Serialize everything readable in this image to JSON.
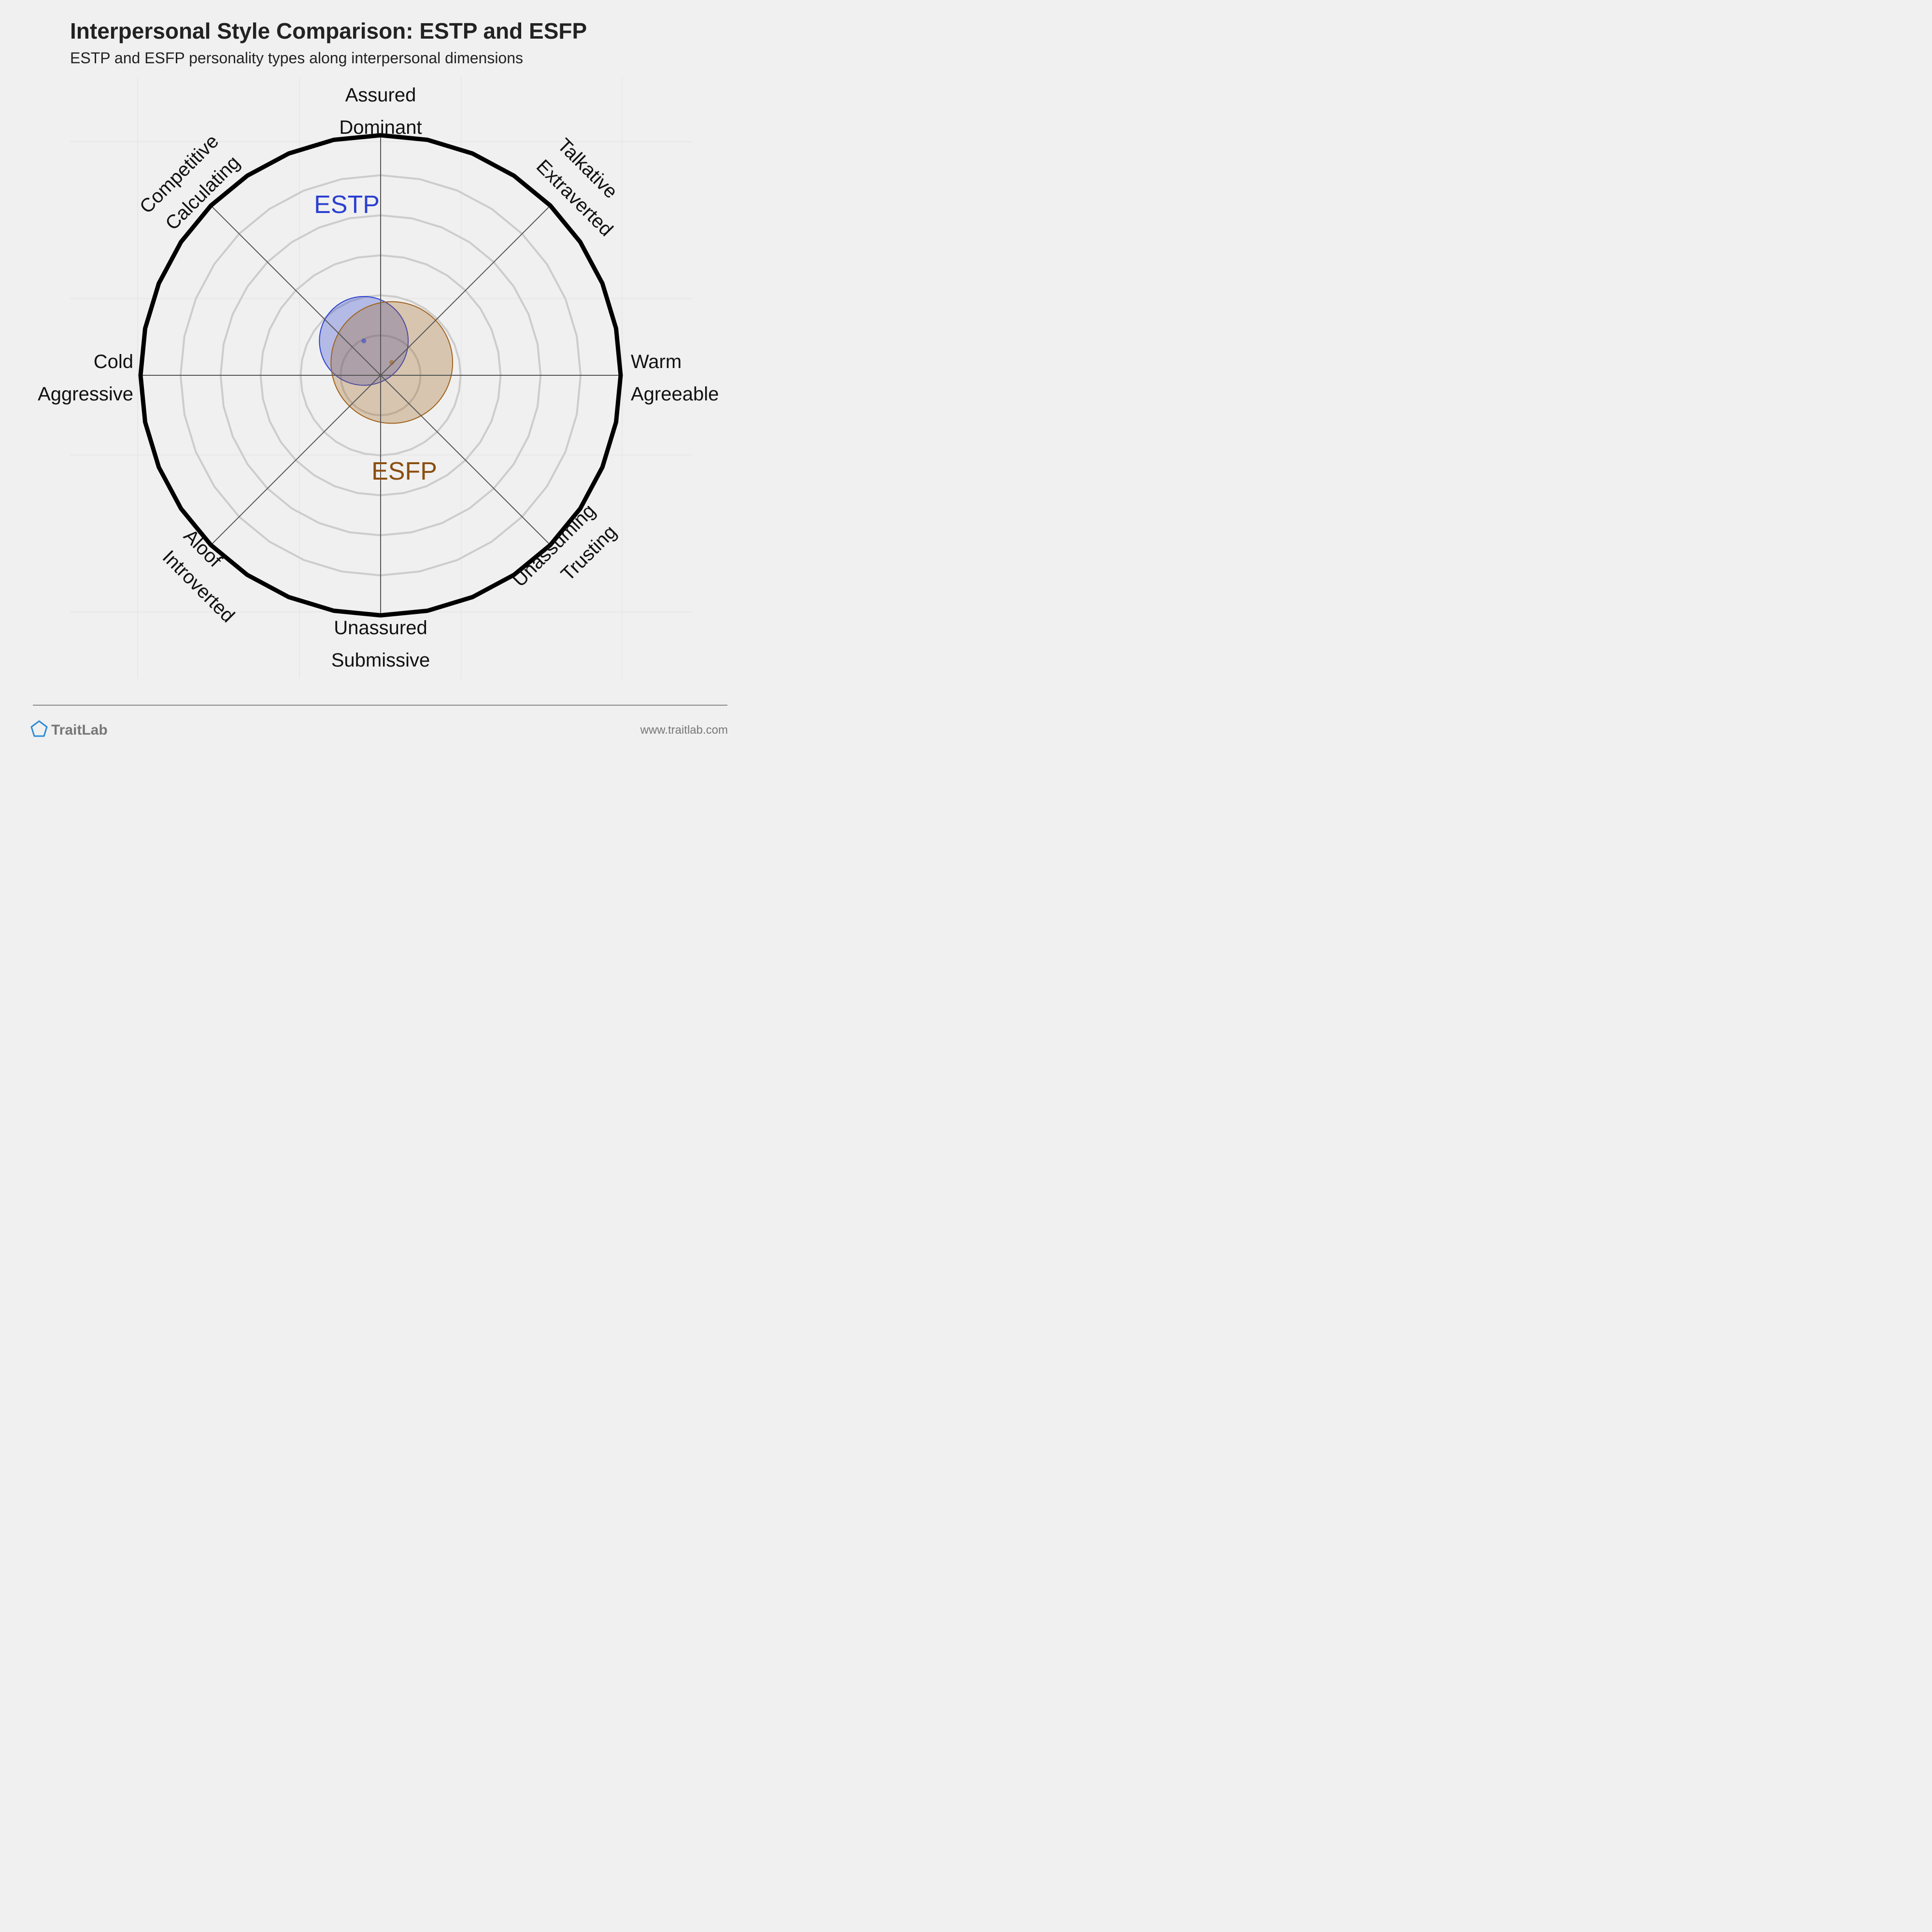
{
  "header": {
    "title": "Interpersonal Style Comparison: ESTP and ESFP",
    "subtitle": "ESTP and ESFP personality types along interpersonal dimensions"
  },
  "chart_data": {
    "type": "scatter",
    "description_hidden": false,
    "axes": [
      {
        "key": "north",
        "lines": [
          "Assured",
          "Dominant"
        ],
        "angle_deg": 90
      },
      {
        "key": "northeast",
        "lines": [
          "Talkative",
          "Extraverted"
        ],
        "angle_deg": 45
      },
      {
        "key": "east",
        "lines": [
          "Warm",
          "Agreeable"
        ],
        "angle_deg": 0
      },
      {
        "key": "southeast",
        "lines": [
          "Unassuming",
          "Trusting"
        ],
        "angle_deg": -45
      },
      {
        "key": "south",
        "lines": [
          "Unassured",
          "Submissive"
        ],
        "angle_deg": -90
      },
      {
        "key": "southwest",
        "lines": [
          "Aloof",
          "Introverted"
        ],
        "angle_deg": -135
      },
      {
        "key": "west",
        "lines": [
          "Cold",
          "Aggressive"
        ],
        "angle_deg": 180
      },
      {
        "key": "northwest",
        "lines": [
          "Competitive",
          "Calculating"
        ],
        "angle_deg": 135
      }
    ],
    "range": [
      0,
      6
    ],
    "rings": 6,
    "series": [
      {
        "name": "ESTP",
        "center": {
          "x": -0.42,
          "y": 0.86
        },
        "spread": 1.11,
        "fill": "#2a40d0",
        "fill_opacity": 0.3,
        "stroke": "#2a40d0",
        "label_color": "#2a40d0"
      },
      {
        "name": "ESFP",
        "center": {
          "x": 0.28,
          "y": 0.32
        },
        "spread": 1.52,
        "fill": "#a0621b",
        "fill_opacity": 0.3,
        "stroke": "#a0621b",
        "label_color": "#8a4e10"
      }
    ]
  },
  "footer": {
    "brand": "TraitLab",
    "url": "www.traitlab.com"
  },
  "colors": {
    "background": "#f0f0f0",
    "ring": "#cccccc",
    "axis_line": "#555555",
    "outer_circle": "#000000",
    "brand_icon": "#2a8ad8"
  }
}
